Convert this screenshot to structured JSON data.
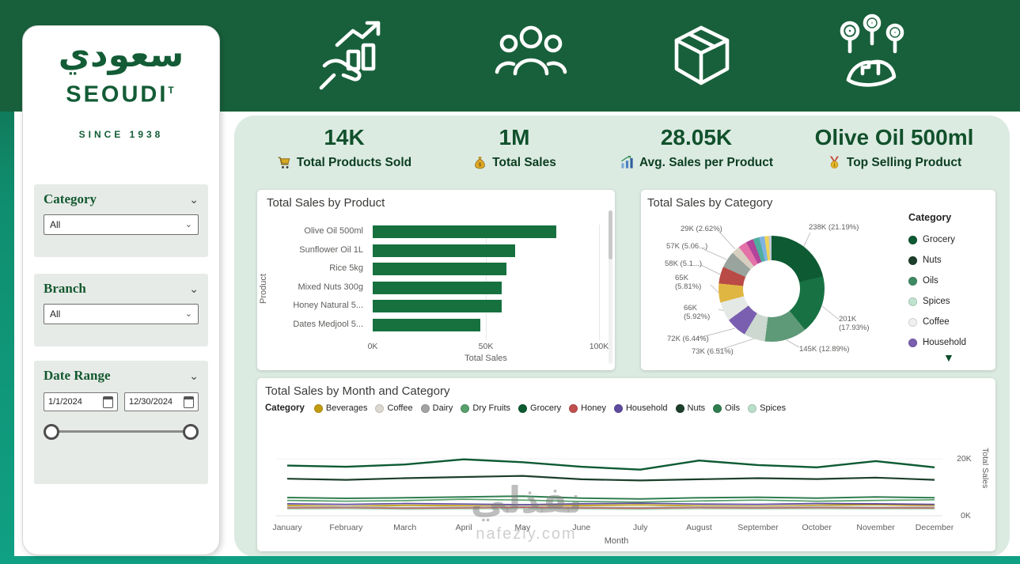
{
  "theme": {
    "brand_green": "#135c36",
    "header_green": "#18603b",
    "panel_green": "#dcebe2",
    "teal": "#10a083",
    "bar_green": "#16713f"
  },
  "brand": {
    "arabic": "سعودي",
    "name": "SEOUDI",
    "mark": "T",
    "tagline": "SINCE 1938"
  },
  "header": {
    "icons": [
      "sales-growth-icon",
      "customers-icon",
      "package-icon",
      "branches-map-icon"
    ]
  },
  "kpis": [
    {
      "icon": "cart-icon",
      "value": "14K",
      "label": "Total Products Sold"
    },
    {
      "icon": "money-bag-icon",
      "value": "1M",
      "label": "Total Sales"
    },
    {
      "icon": "chart-up-icon",
      "value": "28.05K",
      "label": "Avg. Sales per Product"
    },
    {
      "icon": "medal-icon",
      "value": "Olive Oil 500ml",
      "label": "Top Selling Product"
    }
  ],
  "filters": {
    "category": {
      "title": "Category",
      "value": "All"
    },
    "branch": {
      "title": "Branch",
      "value": "All"
    },
    "date_range": {
      "title": "Date Range",
      "start": "1/1/2024",
      "end": "12/30/2024"
    }
  },
  "icons": {
    "chevron": "⌄",
    "expand_more": "▼"
  },
  "watermark": {
    "text": "نفذلي",
    "subtext": "nafezly.com"
  },
  "chart_data": [
    {
      "type": "bar",
      "orientation": "horizontal",
      "title": "Total Sales by Product",
      "categories": [
        "Olive Oil 500ml",
        "Sunflower Oil 1L",
        "Rice 5kg",
        "Mixed Nuts 300g",
        "Honey Natural 5...",
        "Dates Medjool 5..."
      ],
      "values": [
        81000,
        63000,
        59000,
        57000,
        57000,
        47500
      ],
      "xlabel": "Total Sales",
      "ylabel": "Product",
      "xlim": [
        0,
        100000
      ],
      "xticks": [
        {
          "value": 0,
          "label": "0K"
        },
        {
          "value": 50000,
          "label": "50K"
        },
        {
          "value": 100000,
          "label": "100K"
        }
      ],
      "color": "#16713f"
    },
    {
      "type": "pie",
      "title": "Total Sales by Category",
      "legend_title": "Category",
      "slices": [
        {
          "label": "238K (21.19%)",
          "value": 238000,
          "color": "#0d5a33"
        },
        {
          "label": "201K (17.93%)",
          "value": 201000,
          "color": "#177143"
        },
        {
          "label": "145K (12.89%)",
          "value": 145000,
          "color": "#5f9a78"
        },
        {
          "label": "73K (6.51%)",
          "value": 73000,
          "color": "#ccd8d0"
        },
        {
          "label": "72K (6.44%)",
          "value": 72000,
          "color": "#7a5fb0"
        },
        {
          "label": "66K (5.92%)",
          "value": 66000,
          "color": "#e4e9e6"
        },
        {
          "label": "65K (5.81%)",
          "value": 65000,
          "color": "#e0b642"
        },
        {
          "label": "58K (5.1...)",
          "value": 58000,
          "color": "#b94a45"
        },
        {
          "label": "57K (5.06...)",
          "value": 57000,
          "color": "#9aa49e"
        },
        {
          "label": "29K (2.62%)",
          "value": 29000,
          "color": "#d8cfc0"
        },
        {
          "label": "",
          "value": 30000,
          "color": "#e472a8"
        },
        {
          "label": "",
          "value": 25000,
          "color": "#b2459a"
        },
        {
          "label": "",
          "value": 22000,
          "color": "#4fae9f"
        },
        {
          "label": "",
          "value": 18000,
          "color": "#7fb3e3"
        },
        {
          "label": "",
          "value": 14000,
          "color": "#eed45a"
        },
        {
          "label": "",
          "value": 10000,
          "color": "#c4cad6"
        }
      ],
      "legend": [
        {
          "label": "Grocery",
          "color": "#0d5a33"
        },
        {
          "label": "Nuts",
          "color": "#1c3f2b"
        },
        {
          "label": "Oils",
          "color": "#3e8a63"
        },
        {
          "label": "Spices",
          "color": "#bfe3cf"
        },
        {
          "label": "Coffee",
          "color": "#eef1ee"
        },
        {
          "label": "Household",
          "color": "#7a5fb0"
        }
      ]
    },
    {
      "type": "line",
      "title": "Total Sales by Month and Category",
      "legend_title": "Category",
      "x": [
        "January",
        "February",
        "March",
        "April",
        "May",
        "June",
        "July",
        "August",
        "September",
        "October",
        "November",
        "December"
      ],
      "xlabel": "Month",
      "ylabel": "Total Sales",
      "ylim": [
        0,
        20000
      ],
      "yticks": [
        "0K",
        "20K"
      ],
      "series": [
        {
          "name": "Beverages",
          "color": "#c19b10",
          "values": [
            3600,
            3300,
            3700,
            3500,
            3400,
            3600,
            3800,
            3500,
            3300,
            3700,
            3900,
            3600
          ]
        },
        {
          "name": "Coffee",
          "color": "#dcd8d0",
          "values": [
            3100,
            3200,
            3000,
            3100,
            3300,
            3100,
            3000,
            3200,
            3100,
            3300,
            3100,
            3200
          ]
        },
        {
          "name": "Dairy",
          "color": "#a3a3a3",
          "values": [
            2900,
            3000,
            2800,
            2900,
            3100,
            2900,
            2800,
            3000,
            2900,
            3000,
            2900,
            2900
          ]
        },
        {
          "name": "Dry Fruits",
          "color": "#58a06b",
          "values": [
            5400,
            5100,
            5300,
            5800,
            5500,
            5000,
            4800,
            5200,
            5500,
            5100,
            5400,
            5600
          ]
        },
        {
          "name": "Grocery",
          "color": "#0d5a33",
          "width": 2.4,
          "values": [
            17600,
            17200,
            18000,
            19800,
            18800,
            17200,
            16200,
            19400,
            17800,
            17000,
            19200,
            17000
          ]
        },
        {
          "name": "Honey",
          "color": "#c0504d",
          "values": [
            2600,
            2700,
            2500,
            2600,
            2800,
            2600,
            2500,
            2700,
            2600,
            2700,
            2600,
            2600
          ]
        },
        {
          "name": "Household",
          "color": "#5f4b9e",
          "values": [
            4200,
            4000,
            4300,
            4100,
            3900,
            4200,
            4400,
            4100,
            4000,
            4300,
            4200,
            4000
          ]
        },
        {
          "name": "Nuts",
          "color": "#1c3f2b",
          "width": 2.2,
          "values": [
            13000,
            12600,
            13200,
            13600,
            14000,
            12800,
            12400,
            12800,
            13200,
            12900,
            13400,
            12600
          ]
        },
        {
          "name": "Oils",
          "color": "#2f7d4f",
          "width": 2.0,
          "values": [
            6400,
            6100,
            6300,
            6600,
            6900,
            6200,
            5900,
            6300,
            6500,
            6200,
            6600,
            6300
          ]
        },
        {
          "name": "Spices",
          "color": "#b9dfc9",
          "values": [
            2300,
            2400,
            2200,
            2300,
            2500,
            2300,
            2200,
            2400,
            2300,
            2400,
            2300,
            2300
          ]
        }
      ]
    }
  ]
}
